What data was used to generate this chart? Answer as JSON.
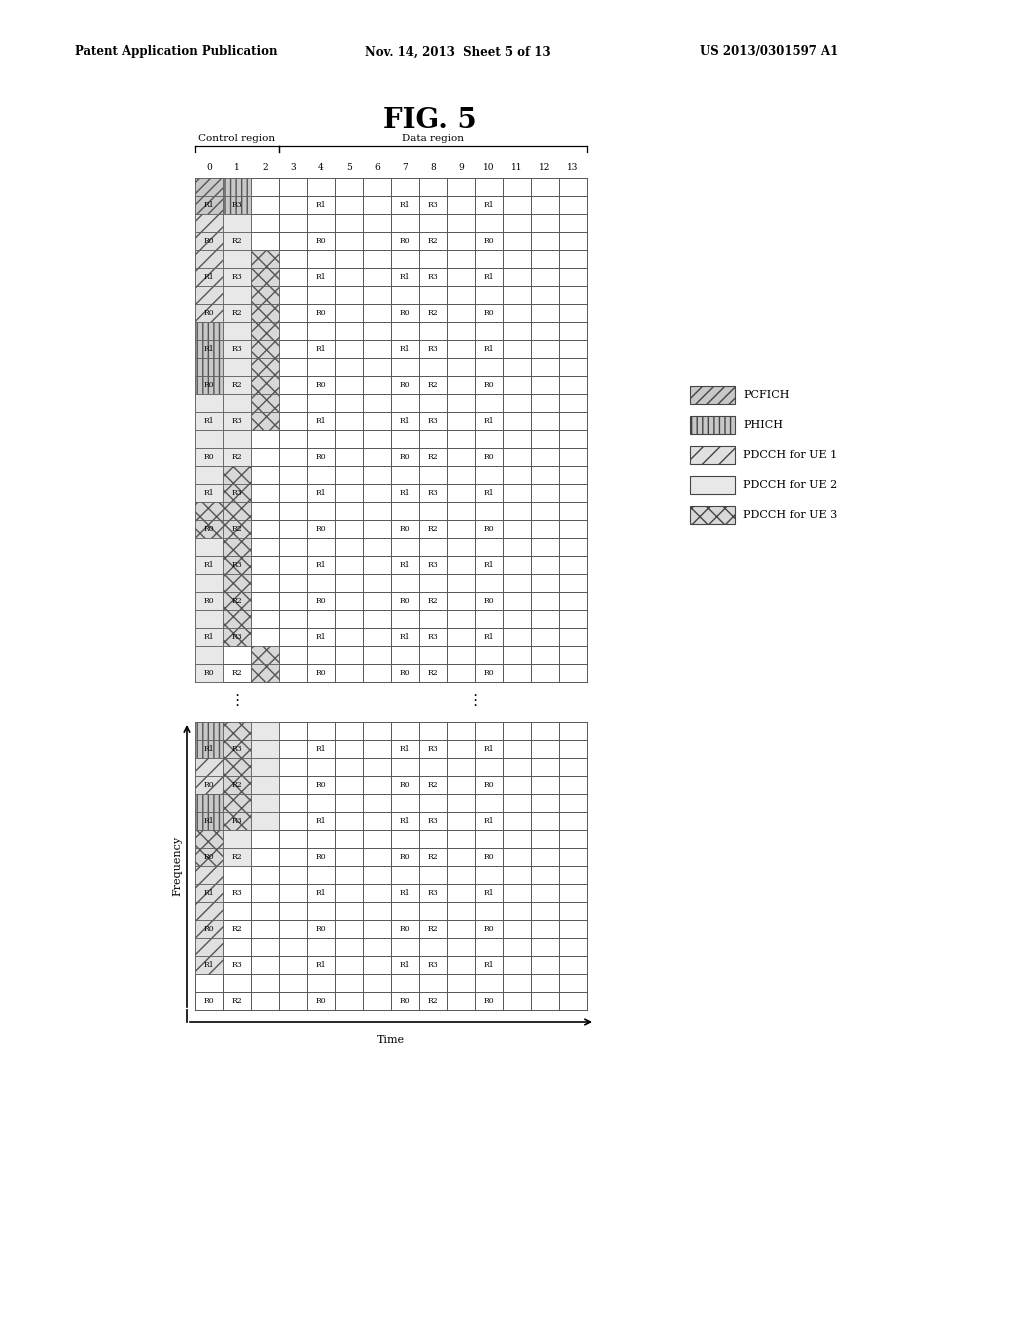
{
  "title": "FIG. 5",
  "header_left": "Patent Application Publication",
  "header_mid": "Nov. 14, 2013  Sheet 5 of 13",
  "header_right": "US 2013/0301597 A1",
  "col_labels": [
    "0",
    "1",
    "2",
    "3",
    "4",
    "5",
    "6",
    "7",
    "8",
    "9",
    "10",
    "11",
    "12",
    "13"
  ],
  "num_cols": 14,
  "grid_color": "#555555",
  "bg_color": "#ffffff"
}
